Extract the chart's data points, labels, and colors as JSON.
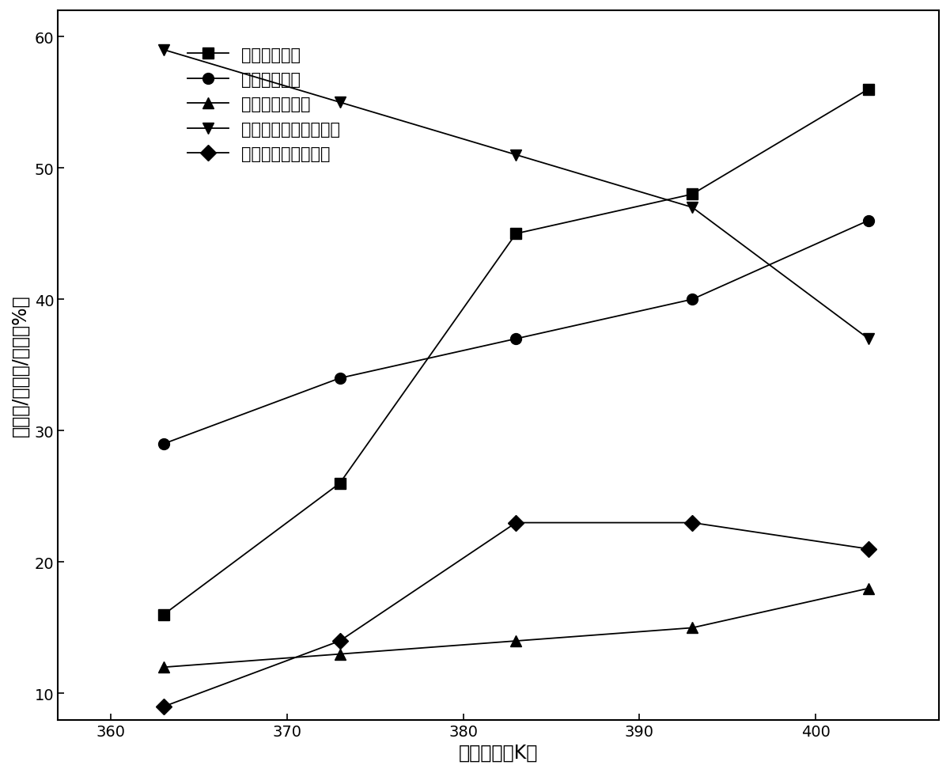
{
  "x": [
    363,
    373,
    383,
    393,
    403
  ],
  "series": {
    "甲缩醛转化率": {
      "y": [
        16,
        26,
        45,
        48,
        56
      ],
      "marker": "s",
      "label": "甲缩醛转化率"
    },
    "二甲醚选择性": {
      "y": [
        29,
        34,
        37,
        40,
        46
      ],
      "marker": "o",
      "label": "二甲醚选择性"
    },
    "甲酸甲酯选择性": {
      "y": [
        12,
        13,
        14,
        15,
        18
      ],
      "marker": "^",
      "label": "甲酸甲酯选择性"
    },
    "甲氧基乙酸甲酯选择性": {
      "y": [
        59,
        55,
        51,
        47,
        37
      ],
      "marker": "v",
      "label": "甲氧基乙酸甲酯选择性"
    },
    "甲氧基乙酸甲酯收率": {
      "y": [
        9,
        14,
        23,
        23,
        21
      ],
      "marker": "D",
      "label": "甲氧基乙酸甲酯收率"
    }
  },
  "xlabel": "反应温度（K）",
  "ylabel": "转化率/选择性/收率（%）",
  "xlim": [
    357,
    407
  ],
  "ylim": [
    8,
    62
  ],
  "xticks": [
    360,
    370,
    380,
    390,
    400
  ],
  "yticks": [
    10,
    20,
    30,
    40,
    50,
    60
  ],
  "color": "black",
  "linewidth": 1.3,
  "markersize": 10,
  "legend_fontsize": 15,
  "axis_label_fontsize": 17,
  "tick_fontsize": 14,
  "background_color": "white",
  "figure_size": [
    12.01,
    9.78
  ]
}
